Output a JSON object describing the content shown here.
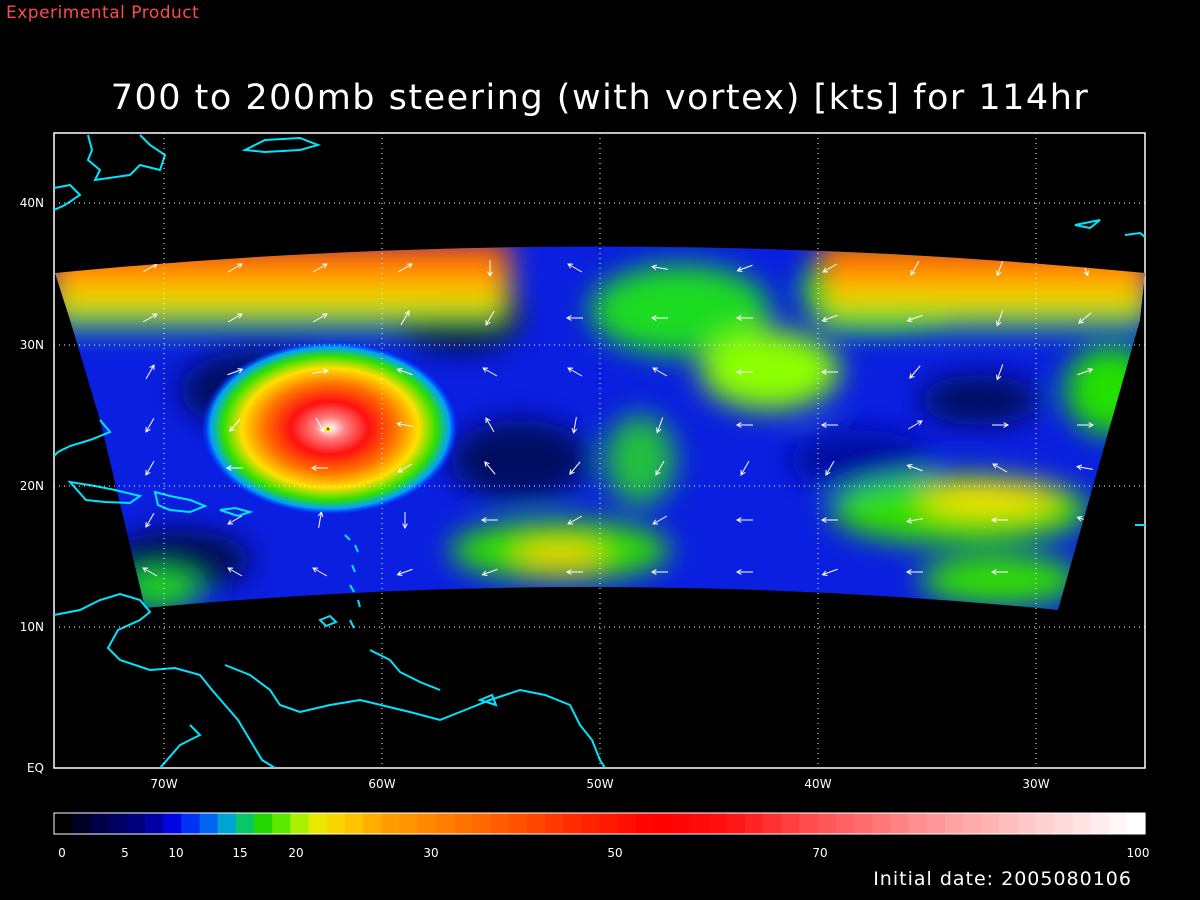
{
  "header": {
    "product_label": "Experimental Product"
  },
  "chart_data": {
    "type": "map",
    "title": "700 to 200mb steering (with vortex) [kts] for 114hr",
    "xaxis": {
      "ticks": [
        "70W",
        "60W",
        "50W",
        "40W",
        "30W"
      ],
      "range": [
        -75,
        -25
      ]
    },
    "yaxis": {
      "ticks": [
        "EQ",
        "10N",
        "20N",
        "30N",
        "40N"
      ],
      "range": [
        0,
        45
      ]
    },
    "grid": true,
    "colorbar": {
      "ticks": [
        "0",
        "5",
        "10",
        "15",
        "20",
        "30",
        "50",
        "70",
        "100"
      ],
      "units": "kts"
    },
    "features": [
      {
        "name": "vortex",
        "lon": -62.5,
        "lat": 24,
        "max_speed_kts": 100
      }
    ],
    "colors": {
      "coastline": "#00e5ff",
      "title": "#ffffff",
      "product": "#ff4b4b"
    }
  },
  "footer": {
    "initial_date": "Initial date: 2005080106"
  }
}
